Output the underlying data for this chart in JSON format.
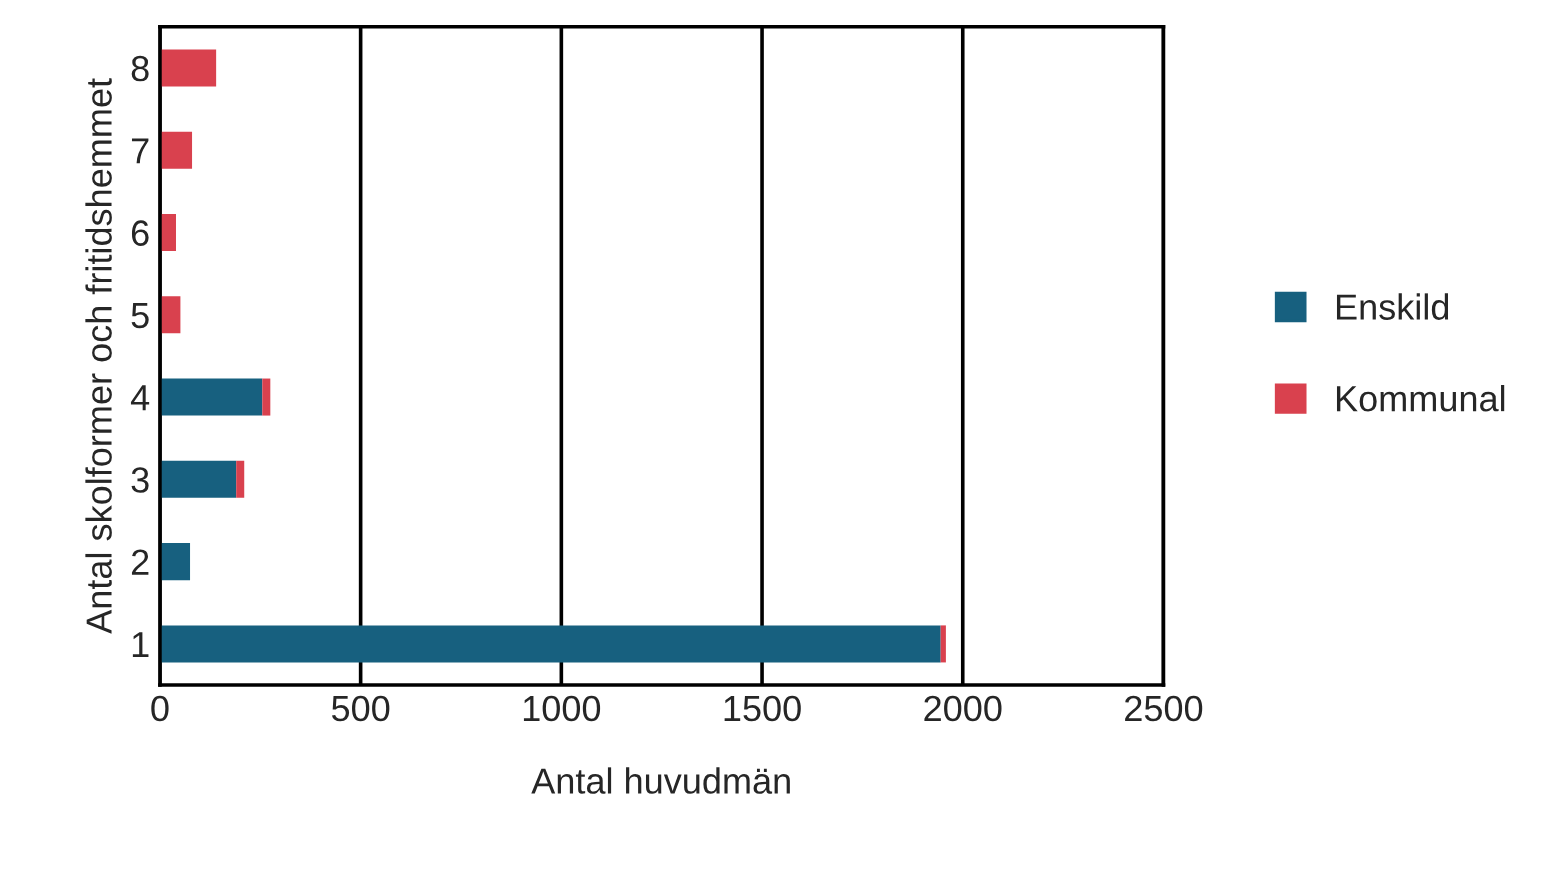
{
  "chart_data": {
    "type": "bar",
    "orientation": "horizontal",
    "stacked": true,
    "xlabel": "Antal huvudmän",
    "ylabel": "Antal skolformer och fritidshemmet",
    "categories": [
      "8",
      "7",
      "6",
      "5",
      "4",
      "3",
      "2",
      "1"
    ],
    "series": [
      {
        "name": "Enskild",
        "color": "#17607f",
        "values": [
          null,
          null,
          null,
          3,
          255,
          190,
          75,
          1945
        ]
      },
      {
        "name": "Kommunal",
        "color": "#d9414e",
        "values": [
          140,
          80,
          40,
          48,
          20,
          20,
          null,
          13
        ]
      }
    ],
    "xlim": [
      0,
      2500
    ],
    "xticks": [
      0,
      500,
      1000,
      1500,
      2000,
      2500
    ],
    "grid": "x",
    "legend": "right"
  }
}
